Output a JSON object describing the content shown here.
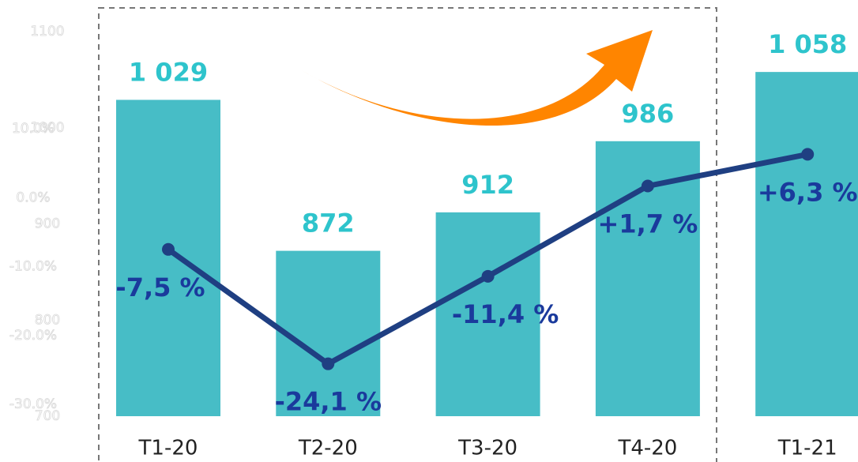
{
  "chart_data": {
    "type": "bar",
    "categories": [
      "T1-20",
      "T2-20",
      "T3-20",
      "T4-20",
      "T1-21"
    ],
    "series": [
      {
        "type": "bar",
        "color": "#47bdc6",
        "values": [
          1029,
          872,
          912,
          986,
          1058
        ],
        "value_labels": [
          "1 029",
          "872",
          "912",
          "986",
          "1 058"
        ]
      },
      {
        "type": "line",
        "axis": "y2",
        "color": "#1f3f82",
        "values": [
          -7.5,
          -24.1,
          -11.4,
          1.7,
          6.3
        ],
        "value_labels": [
          "-7,5 %",
          "-24,1 %",
          "-11,4 %",
          "+1,7 %",
          "+6,3 %"
        ]
      }
    ],
    "ylim": [
      700,
      1100
    ],
    "yticks": [
      700,
      800,
      900,
      1000,
      1100
    ],
    "y2lim": [
      -31.7,
      24.1
    ],
    "y2ticks": [
      {
        "value": -30,
        "label": "-30.0%"
      },
      {
        "value": -20,
        "label": "-20.0%"
      },
      {
        "value": -10,
        "label": "-10.0%"
      },
      {
        "value": 0,
        "label": "0.0%"
      },
      {
        "value": 10,
        "label": "10.0%"
      }
    ]
  }
}
